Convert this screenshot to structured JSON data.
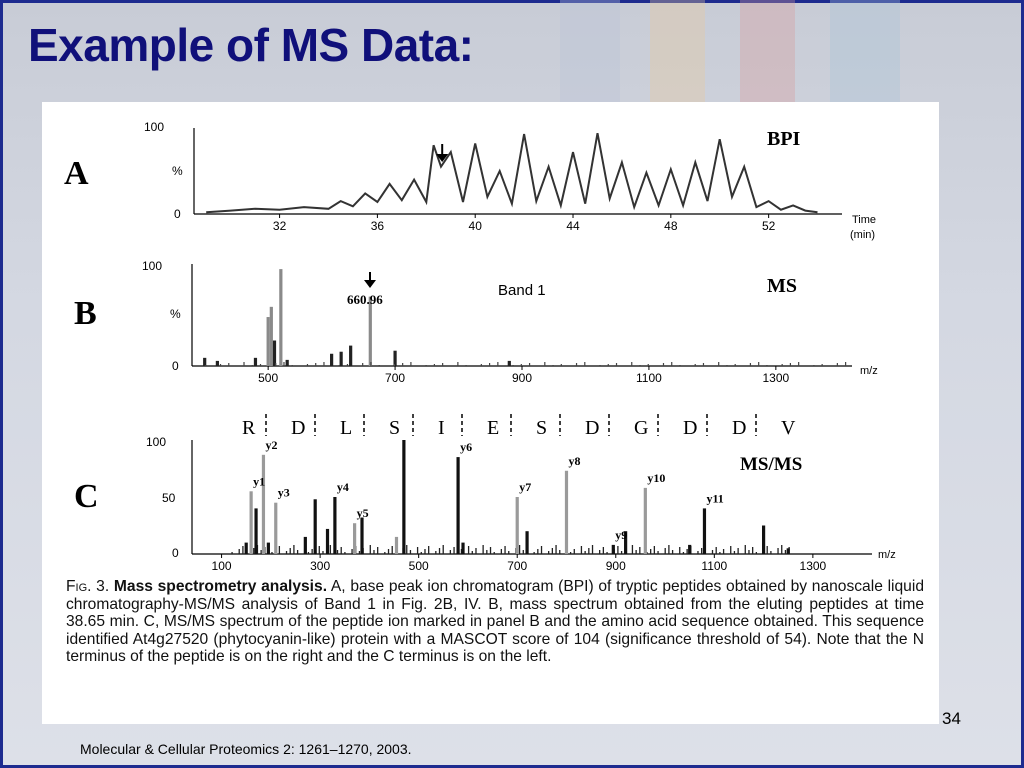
{
  "slide": {
    "title": "Example of MS Data:",
    "page_number": "34",
    "citation": "Molecular & Cellular Proteomics 2: 1261–1270, 2003.",
    "band_label": "Band 1",
    "colors": {
      "title": "#10107a",
      "border": "#1d2b8f",
      "background": "#d4d8e2"
    }
  },
  "panels": {
    "a": {
      "letter": "A",
      "tag": "BPI",
      "y_ticks": [
        "100",
        "%",
        "0"
      ],
      "x_ticks": [
        "32",
        "36",
        "40",
        "44",
        "48",
        "52"
      ],
      "x_label_1": "Time",
      "x_label_2": "(min)"
    },
    "b": {
      "letter": "B",
      "tag": "MS",
      "y_ticks": [
        "100",
        "%",
        "0"
      ],
      "x_ticks": [
        "500",
        "700",
        "900",
        "1100",
        "1300"
      ],
      "x_label": "m/z",
      "peak_label": "660.96"
    },
    "c": {
      "letter": "C",
      "tag": "MS/MS",
      "y_ticks": [
        "100",
        "50",
        "0"
      ],
      "x_ticks": [
        "100",
        "300",
        "500",
        "700",
        "900",
        "1100",
        "1300"
      ],
      "x_label": "m/z",
      "sequence": [
        "R",
        "D",
        "L",
        "S",
        "I",
        "E",
        "S",
        "D",
        "G",
        "D",
        "D",
        "V"
      ],
      "ion_labels": [
        "y1",
        "y2",
        "y3",
        "y4",
        "y5",
        "y6",
        "y7",
        "y8",
        "y9",
        "y10",
        "y11"
      ]
    }
  },
  "caption": {
    "fig": "Fig. 3.",
    "heading": "Mass spectrometry analysis.",
    "text": "A, base peak ion chromatogram (BPI) of tryptic peptides obtained by nanoscale liquid chromatography-MS/MS analysis of Band 1 in Fig. 2B, IV. B, mass spectrum obtained from the eluting peptides at time 38.65 min. C, MS/MS spectrum of the peptide ion marked in panel B and the amino acid sequence obtained. This sequence identified At4g27520 (phytocyanin-like) protein with a MASCOT score of 104 (significance threshold of 54). Note that the N terminus of the peptide is on the right and the C terminus is on the left."
  },
  "chart_data": [
    {
      "type": "line",
      "title": "BPI",
      "xlabel": "Time (min)",
      "ylabel": "%",
      "xlim": [
        28.5,
        55
      ],
      "ylim": [
        0,
        100
      ],
      "x": [
        29,
        30,
        31,
        32,
        33,
        34,
        34.5,
        35,
        35.5,
        36,
        36.5,
        37,
        37.5,
        38,
        38.3,
        38.6,
        39,
        39.5,
        40,
        40.5,
        41,
        41.5,
        42,
        42.5,
        43,
        43.5,
        44,
        44.5,
        45,
        45.5,
        46,
        46.5,
        47,
        47.5,
        48,
        48.5,
        49,
        49.5,
        50,
        50.5,
        51,
        51.5,
        52,
        52.5,
        53,
        53.5,
        54
      ],
      "y": [
        2,
        4,
        6,
        5,
        8,
        6,
        15,
        9,
        24,
        14,
        35,
        16,
        40,
        14,
        80,
        55,
        72,
        14,
        82,
        20,
        50,
        12,
        93,
        15,
        55,
        10,
        72,
        12,
        94,
        18,
        60,
        8,
        48,
        10,
        52,
        10,
        60,
        15,
        87,
        20,
        55,
        8,
        15,
        5,
        10,
        4,
        2
      ],
      "annotations": [
        {
          "x": 38.65,
          "label": "arrow"
        }
      ]
    },
    {
      "type": "bar",
      "title": "MS",
      "xlabel": "m/z",
      "ylabel": "%",
      "xlim": [
        380,
        1420
      ],
      "ylim": [
        0,
        100
      ],
      "x": [
        400,
        420,
        480,
        500,
        505,
        510,
        520,
        530,
        600,
        615,
        630,
        660.96,
        700,
        880
      ],
      "y": [
        8,
        5,
        8,
        48,
        58,
        25,
        95,
        6,
        12,
        14,
        20,
        68,
        15,
        5
      ],
      "annotations": [
        {
          "x": 660.96,
          "label": "660.96"
        }
      ]
    },
    {
      "type": "bar",
      "title": "MS/MS",
      "xlabel": "m/z",
      "ylabel": "%",
      "xlim": [
        40,
        1420
      ],
      "ylim": [
        0,
        100
      ],
      "x": [
        150,
        160,
        170,
        185,
        195,
        210,
        270,
        290,
        315,
        330,
        370,
        385,
        455,
        470,
        580,
        590,
        700,
        720,
        800,
        895,
        920,
        960,
        1050,
        1080,
        1200,
        1250
      ],
      "y": [
        10,
        55,
        40,
        87,
        10,
        45,
        15,
        48,
        22,
        50,
        27,
        32,
        15,
        100,
        85,
        10,
        50,
        20,
        73,
        8,
        20,
        58,
        8,
        40,
        25,
        5
      ],
      "ion_labels": [
        "y1",
        "y2",
        "y3",
        "y4",
        "y5",
        "y6",
        "y7",
        "y8",
        "y9",
        "y10",
        "y11"
      ]
    }
  ]
}
